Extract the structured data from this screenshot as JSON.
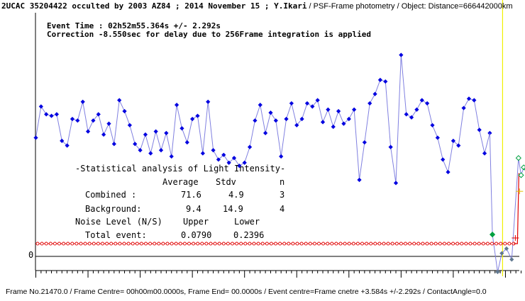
{
  "header": {
    "title_main": "2UCAC 35204422 occulted by 2003 AZ84 ; 2014 November 15 ; Y.Ikari",
    "title_rest": " / PSF-Frame photometry /  Object: Distance=666442000km"
  },
  "annotations": {
    "event_time": "Event Time : 02h52m55.364s  +/- 2.292s",
    "correction": "Correction -8.550sec for delay due to 256Frame integration is applied"
  },
  "stats": {
    "title": "-Statistical analysis of Light Intensity-",
    "header": {
      "average": "Average",
      "stdv": "Stdv",
      "n": "n"
    },
    "rows": [
      {
        "label": "Combined  :",
        "average": "71.6",
        "stdv": "4.9",
        "n": "3"
      },
      {
        "label": "Background:",
        "average": "9.4",
        "stdv": "14.9",
        "n": "4"
      }
    ],
    "noise_label": "Noise Level (N/S)",
    "noise_upper": "Upper",
    "noise_lower": "Lower",
    "total_label": "Total event:",
    "total_upper": "0.0790",
    "total_lower": "0.2396"
  },
  "footer": {
    "text": "Frame No.21470.0 / Frame Centre= 00h00m00.0000s,  Frame End= 00.0000s / Event centre=Frame cnetre +3.584s +/-2.292s / ContactAngle=0.0"
  },
  "chart_data": {
    "type": "line",
    "y_zero_label": "0",
    "colors": {
      "observed_line": "#8080e0",
      "observed_marker": "#0000e0",
      "model_line": "#e00000",
      "event_markers": "#00a040",
      "bottom_markers": "#607890",
      "event_cursor": "#f0f000",
      "cross_marker": "#e0c000"
    },
    "observed": [
      76,
      96,
      91,
      90,
      91,
      74,
      71,
      88,
      87,
      99,
      80,
      87,
      91,
      78,
      85,
      72,
      100,
      93,
      84,
      72,
      68,
      78,
      66,
      80,
      68,
      79,
      64,
      97,
      82,
      73,
      88,
      90,
      66,
      99,
      68,
      62,
      65,
      60,
      63,
      58,
      60,
      70,
      87,
      97,
      79,
      92,
      87,
      64,
      88,
      98,
      84,
      88,
      98,
      96,
      100,
      86,
      94,
      83,
      93,
      85,
      88,
      94,
      49,
      73,
      98,
      104,
      113,
      112,
      70,
      47,
      129,
      91,
      89,
      94,
      100,
      98,
      84,
      76,
      62,
      54,
      74,
      71,
      95,
      101,
      100,
      81,
      66,
      79
    ],
    "event_markers": [
      {
        "x": 87.5,
        "y": 14
      },
      {
        "x": 92.5,
        "y": 63
      },
      {
        "x": 93.0,
        "y": 52
      },
      {
        "x": 93.5,
        "y": 57
      },
      {
        "x": 94.0,
        "y": 56
      }
    ],
    "bottom_markers": [
      {
        "x": 88.5,
        "y": -10
      },
      {
        "x": 89.3,
        "y": 2
      },
      {
        "x": 90.2,
        "y": 5
      },
      {
        "x": 91.2,
        "y": -2
      }
    ],
    "model_baseline": 0,
    "model_level": 53,
    "model_step_x": 92.3,
    "ylim": [
      -12,
      140
    ],
    "xlim": [
      -1,
      94.5
    ]
  }
}
